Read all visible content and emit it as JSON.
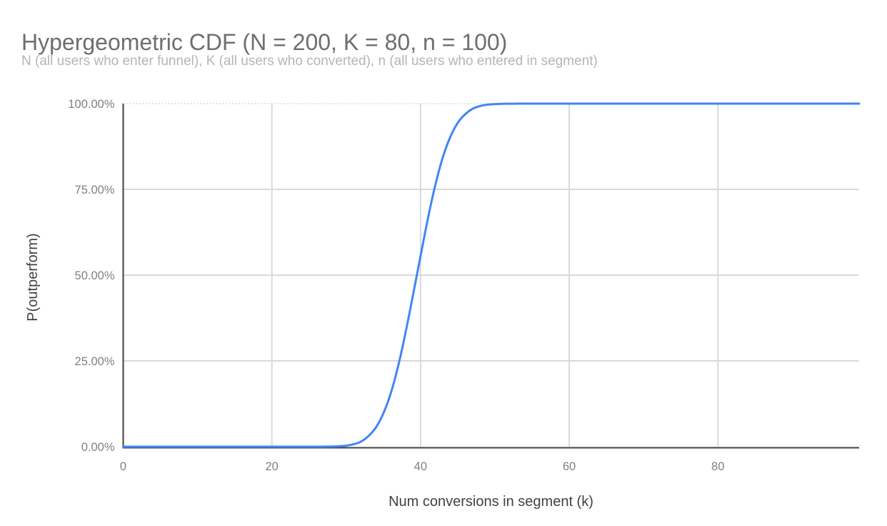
{
  "colors": {
    "background": "#ffffff",
    "series_line": "#4285f4",
    "axis_line": "#424242",
    "gridline": "#d9d9d9",
    "top_gridline": "#cfcfcf",
    "title_text": "#6e6e6e",
    "subtitle_text": "#b5b5b5",
    "tick_text": "#808080",
    "axis_title_text": "#424242"
  },
  "chart_data": {
    "type": "line",
    "title": "Hypergeometric CDF (N = 200, K = 80, n = 100)",
    "subtitle": "N (all users who enter funnel), K (all users who converted), n (all users who entered in segment)",
    "xlabel": "Num conversions in segment (k)",
    "ylabel": "P(outperform)",
    "xlim": [
      0,
      99
    ],
    "ylim": [
      0,
      1
    ],
    "x_ticks": [
      0,
      20,
      40,
      60,
      80
    ],
    "y_ticks": {
      "values": [
        0,
        0.25,
        0.5,
        0.75,
        1
      ],
      "labels": [
        "0.00%",
        "25.00%",
        "50.00%",
        "75.00%",
        "100.00%"
      ]
    },
    "grid": true,
    "legend": "none",
    "series": [
      {
        "name": "P(outperform)",
        "distribution": "hypergeometric CDF",
        "params": {
          "N": 200,
          "K": 80,
          "n": 100
        },
        "x": [
          0,
          1,
          2,
          3,
          4,
          5,
          6,
          7,
          8,
          9,
          10,
          11,
          12,
          13,
          14,
          15,
          16,
          17,
          18,
          19,
          20,
          21,
          22,
          23,
          24,
          25,
          26,
          27,
          28,
          29,
          30,
          31,
          32,
          33,
          34,
          35,
          36,
          37,
          38,
          39,
          40,
          41,
          42,
          43,
          44,
          45,
          46,
          47,
          48,
          49,
          50,
          51,
          52,
          53,
          54,
          55,
          56,
          57,
          58,
          59,
          60,
          61,
          62,
          63,
          64,
          65,
          66,
          67,
          68,
          69,
          70,
          71,
          72,
          73,
          74,
          75,
          76,
          77,
          78,
          79,
          80,
          81,
          82,
          83,
          84,
          85,
          86,
          87,
          88,
          89,
          90,
          91,
          92,
          93,
          94,
          95,
          96,
          97,
          98,
          99
        ],
        "y": [
          0,
          0,
          0,
          0,
          0,
          0,
          0,
          0,
          0,
          0,
          0,
          0,
          0,
          0,
          0,
          0,
          0,
          0,
          0,
          0,
          0,
          0,
          0,
          0,
          0,
          2e-05,
          6e-05,
          0.0002,
          0.0005,
          0.0013,
          0.003,
          0.007,
          0.015,
          0.031,
          0.056,
          0.097,
          0.156,
          0.236,
          0.334,
          0.444,
          0.556,
          0.666,
          0.764,
          0.844,
          0.903,
          0.944,
          0.969,
          0.985,
          0.993,
          0.997,
          0.9988,
          0.9995,
          0.9998,
          0.9999,
          1,
          1,
          1,
          1,
          1,
          1,
          1,
          1,
          1,
          1,
          1,
          1,
          1,
          1,
          1,
          1,
          1,
          1,
          1,
          1,
          1,
          1,
          1,
          1,
          1,
          1,
          1,
          1,
          1,
          1,
          1,
          1,
          1,
          1,
          1,
          1,
          1,
          1,
          1,
          1,
          1,
          1,
          1,
          1,
          1,
          1
        ]
      }
    ]
  }
}
